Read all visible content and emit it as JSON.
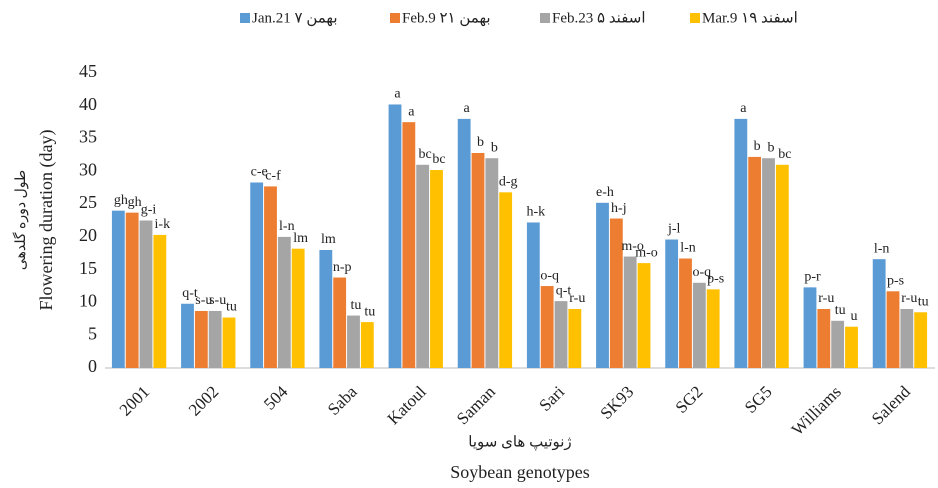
{
  "chart_data": {
    "type": "bar",
    "ylabel": "Flowering duration (day)",
    "ylabel_fa": "طول دوره گلدهی",
    "xlabel_fa": "ژنوتیپ های سویا",
    "xlabel": "Soybean genotypes",
    "categories": [
      "2001",
      "2002",
      "504",
      "Saba",
      "Katoul",
      "Saman",
      "Sari",
      "SK93",
      "SG2",
      "SG5",
      "Williams",
      "Salend"
    ],
    "series": [
      {
        "name": "Jan.21 بهمن ۷",
        "color": "#5b9bd5",
        "values": [
          24,
          9.8,
          28.3,
          18,
          40.2,
          38,
          22.2,
          25.2,
          19.6,
          38,
          12.3,
          16.6
        ],
        "letters": [
          "gh",
          "q-t",
          "c-e",
          "lm",
          "a",
          "a",
          "h-k",
          "e-h",
          "j-l",
          "a",
          "p-r",
          "l-n"
        ]
      },
      {
        "name": "Feb.9 بهمن ۲۱",
        "color": "#ed7d31",
        "values": [
          23.7,
          8.7,
          27.7,
          13.8,
          37.5,
          32.8,
          12.5,
          22.8,
          16.7,
          32.2,
          9,
          11.7
        ],
        "letters": [
          "gh",
          "s-u",
          "c-f",
          "n-p",
          "a",
          "b",
          "o-q",
          "h-j",
          "l-n",
          "b",
          "r-u",
          "p-s"
        ]
      },
      {
        "name": "Feb.23 اسفند ۵",
        "color": "#a5a5a5",
        "values": [
          22.5,
          8.7,
          20,
          8,
          31,
          32,
          10.2,
          17,
          13,
          32,
          7.2,
          9
        ],
        "letters": [
          "g-i",
          "s-u",
          "l-n",
          "tu",
          "bc",
          "b",
          "q-t",
          "m-o",
          "o-q",
          "b",
          "tu",
          "r-u"
        ]
      },
      {
        "name": "Mar.9 اسفند ۱۹",
        "color": "#ffc000",
        "values": [
          20.3,
          7.7,
          18.2,
          7,
          30.2,
          26.8,
          9,
          16,
          12,
          31,
          6.3,
          8.5
        ],
        "letters": [
          "i-k",
          "tu",
          "lm",
          "tu",
          "bc",
          "d-g",
          "r-u",
          "m-o",
          "p-s",
          "bc",
          "u",
          "tu"
        ]
      }
    ],
    "ylim": [
      0,
      45
    ],
    "yticks": [
      0,
      5,
      10,
      15,
      20,
      25,
      30,
      35,
      40,
      45
    ],
    "legend": "top",
    "grid": false
  }
}
